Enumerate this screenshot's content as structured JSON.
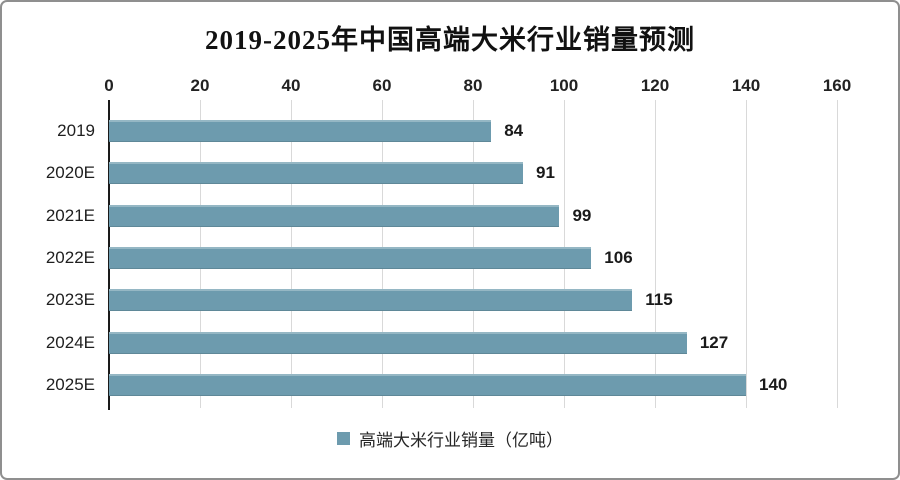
{
  "chart_data": {
    "type": "bar",
    "orientation": "horizontal",
    "title": "2019-2025年中国高端大米行业销量预测",
    "categories": [
      "2019",
      "2020E",
      "2021E",
      "2022E",
      "2023E",
      "2024E",
      "2025E"
    ],
    "values": [
      84,
      91,
      99,
      106,
      115,
      127,
      140
    ],
    "x_ticks": [
      "0",
      "20",
      "40",
      "60",
      "80",
      "100",
      "120",
      "140",
      "160"
    ],
    "xlim": [
      0,
      160
    ],
    "xlabel": "",
    "ylabel": "",
    "grid": "vertical-on",
    "axis_position": "top",
    "value_labels": true,
    "bar_color": "#6d9bae",
    "legend_position": "bottom",
    "legend": [
      {
        "label": "高端大米行业销量（亿吨）",
        "color": "#6d9bae"
      }
    ]
  },
  "colors": {
    "background": "#ffffff",
    "frame_border": "#8f8f8f",
    "gridline": "#d9d9d9",
    "axis_line": "#1a1a1a",
    "title_text": "#111111",
    "label_text": "#1f1f1f"
  }
}
